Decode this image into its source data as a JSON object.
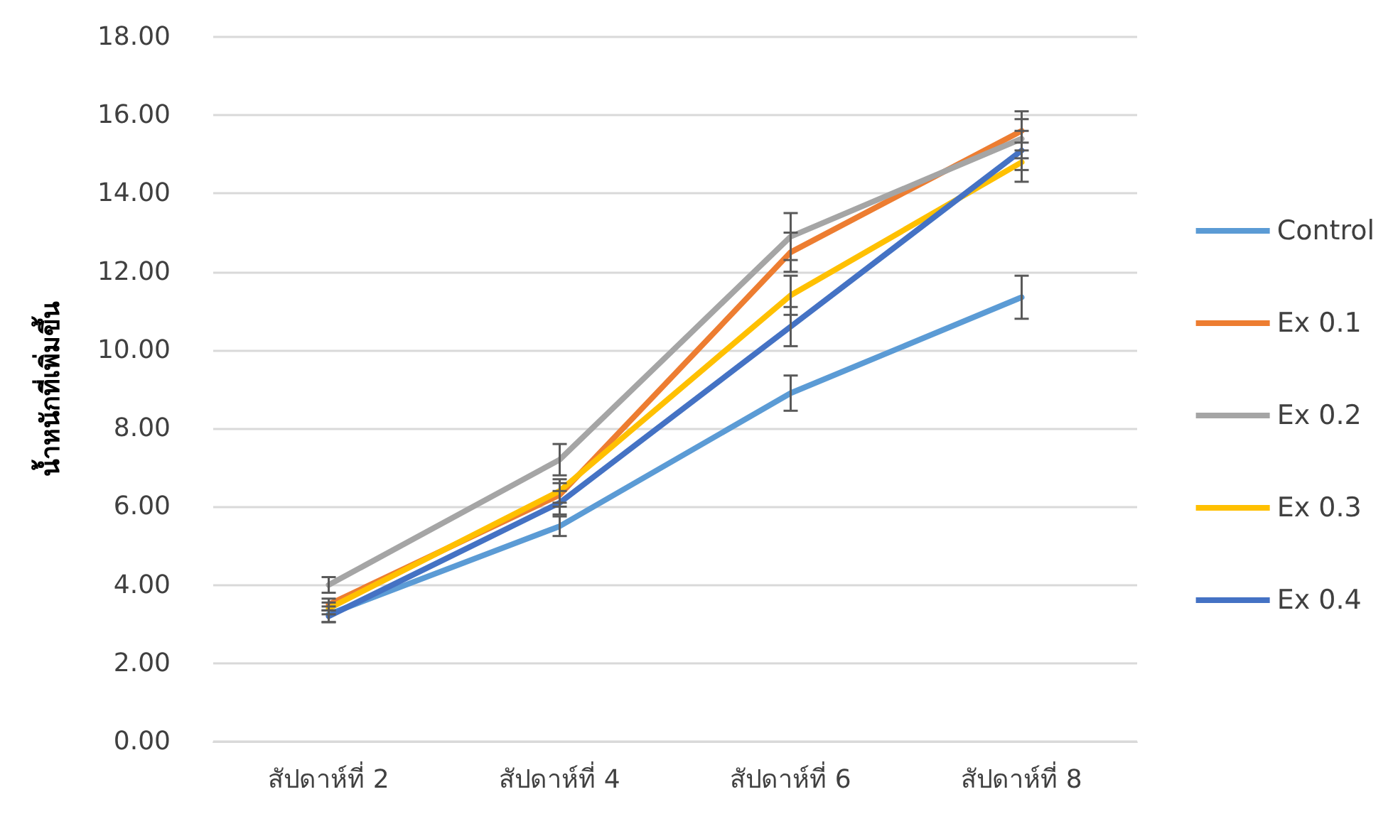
{
  "chart_data": {
    "type": "line",
    "ylabel": "น้ำหนักที่เพิ่มขึ้น",
    "categories": [
      "สัปดาห์ที่ 2",
      "สัปดาห์ที่ 4",
      "สัปดาห์ที่ 6",
      "สัปดาห์ที่ 8"
    ],
    "ylim": [
      0,
      18
    ],
    "yticks": [
      {
        "value": 0,
        "label": "0.00"
      },
      {
        "value": 2,
        "label": "2.00"
      },
      {
        "value": 4,
        "label": "4.00"
      },
      {
        "value": 6,
        "label": "6.00"
      },
      {
        "value": 8,
        "label": "8.00"
      },
      {
        "value": 10,
        "label": "10.00"
      },
      {
        "value": 12,
        "label": "12.00"
      },
      {
        "value": 14,
        "label": "14.00"
      },
      {
        "value": 16,
        "label": "16.00"
      },
      {
        "value": 18,
        "label": "18.00"
      }
    ],
    "grid": "y",
    "legend": "right",
    "marker": "none",
    "line_style": "solid",
    "series": [
      {
        "name": "Control",
        "color": "#5b9bd5",
        "values": [
          3.25,
          5.5,
          8.9,
          11.35
        ],
        "errors": [
          0.2,
          0.25,
          0.45,
          0.55
        ]
      },
      {
        "name": "Ex 0.1",
        "color": "#ed7d31",
        "values": [
          3.5,
          6.3,
          12.5,
          15.6
        ],
        "errors": [
          0.15,
          0.3,
          0.5,
          0.5
        ]
      },
      {
        "name": "Ex 0.2",
        "color": "#a5a5a5",
        "values": [
          4.0,
          7.2,
          12.9,
          15.4
        ],
        "errors": [
          0.2,
          0.4,
          0.6,
          0.5
        ]
      },
      {
        "name": "Ex 0.3",
        "color": "#ffc000",
        "values": [
          3.4,
          6.4,
          11.4,
          14.8
        ],
        "errors": [
          0.15,
          0.3,
          0.5,
          0.5
        ]
      },
      {
        "name": "Ex 0.4",
        "color": "#4472c4",
        "values": [
          3.2,
          6.1,
          10.6,
          15.1
        ],
        "errors": [
          0.15,
          0.3,
          0.5,
          0.5
        ]
      }
    ]
  }
}
